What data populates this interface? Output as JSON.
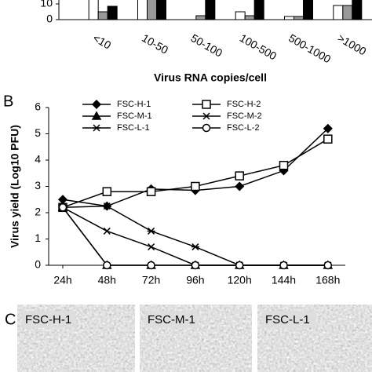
{
  "chart_data": [
    {
      "type": "bar",
      "x_label": "Virus RNA copies/cell",
      "categories": [
        "<10",
        "10-50",
        "50-100",
        "100-500",
        "500-1000",
        ">1000"
      ],
      "series": [
        {
          "color": "#ffffff",
          "values": [
            13,
            13,
            0,
            5,
            2,
            9
          ]
        },
        {
          "color": "#999999",
          "values": [
            5,
            13,
            2.5,
            2.5,
            2,
            9
          ]
        },
        {
          "color": "#000000",
          "values": [
            8.5,
            13,
            13,
            13,
            13,
            13
          ]
        }
      ],
      "ylim": [
        0,
        12.5
      ],
      "yticks": [
        0,
        10
      ]
    },
    {
      "type": "line",
      "panel_label": "B",
      "y_label": "Virus yield (Log10 PFU)",
      "categories": [
        "24h",
        "48h",
        "72h",
        "96h",
        "120h",
        "144h",
        "168h"
      ],
      "series": [
        {
          "name": "FSC-H-1",
          "marker": "diamond",
          "color": "#000000",
          "values": [
            2.5,
            2.25,
            2.9,
            2.85,
            3.0,
            3.6,
            5.2
          ]
        },
        {
          "name": "FSC-H-2",
          "marker": "square-open",
          "color": "#000000",
          "values": [
            2.2,
            2.8,
            2.8,
            3.0,
            3.4,
            3.8,
            4.8
          ]
        },
        {
          "name": "FSC-M-1",
          "marker": "triangle",
          "color": "#000000",
          "values": [
            2.2,
            0,
            0,
            0,
            0,
            0,
            0
          ]
        },
        {
          "name": "FSC-M-2",
          "marker": "x",
          "color": "#000000",
          "values": [
            2.2,
            1.3,
            0.7,
            0,
            0,
            0,
            0
          ]
        },
        {
          "name": "FSC-L-1",
          "marker": "asterisk",
          "color": "#000000",
          "values": [
            2.2,
            2.25,
            1.3,
            0.7,
            0,
            0,
            0
          ]
        },
        {
          "name": "FSC-L-2",
          "marker": "circle-open",
          "color": "#000000",
          "values": [
            2.2,
            0,
            0,
            0,
            0,
            0,
            0
          ]
        }
      ],
      "ylim": [
        0,
        6
      ],
      "yticks": [
        0,
        1,
        2,
        3,
        4,
        5,
        6
      ]
    }
  ],
  "photos": {
    "panel_label": "C",
    "images": [
      "FSC-H-1",
      "FSC-M-1",
      "FSC-L-1"
    ]
  }
}
